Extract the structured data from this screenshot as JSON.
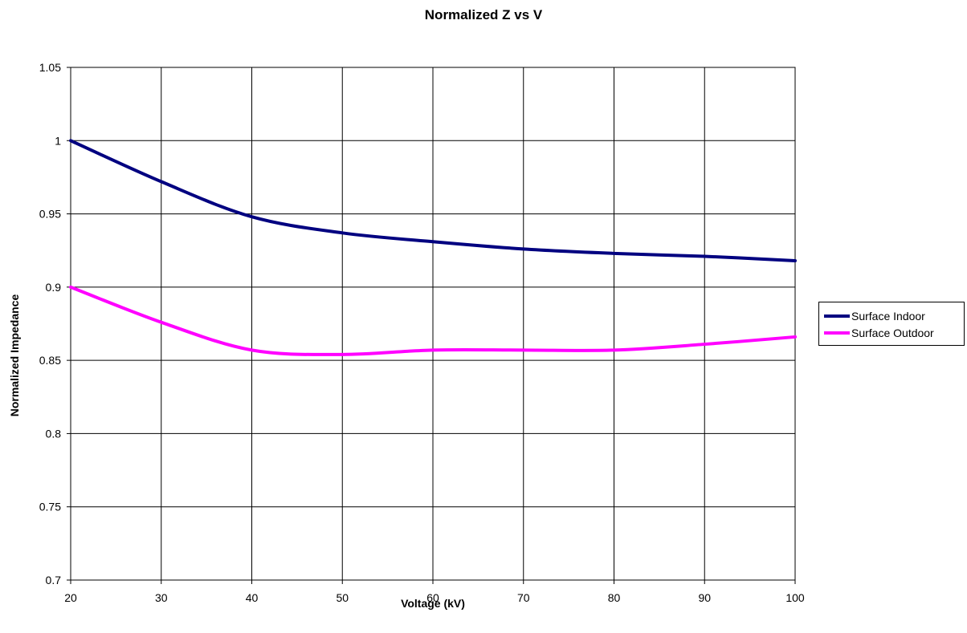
{
  "chart_data": {
    "type": "line",
    "title": "Normalized Z vs V",
    "xlabel": "Voltage (kV)",
    "ylabel": "Normalized Impedance",
    "xlim": [
      20,
      100
    ],
    "ylim": [
      0.7,
      1.05
    ],
    "x_ticks": [
      "20",
      "30",
      "40",
      "50",
      "60",
      "70",
      "80",
      "90",
      "100"
    ],
    "y_ticks": [
      "0.7",
      "0.75",
      "0.8",
      "0.85",
      "0.9",
      "0.95",
      "1",
      "1.05"
    ],
    "grid": true,
    "legend_position": "right",
    "series": [
      {
        "name": "Surface Indoor",
        "color": "#000080",
        "x": [
          20,
          30,
          40,
          50,
          60,
          70,
          80,
          90,
          100
        ],
        "y": [
          1.0,
          0.972,
          0.948,
          0.937,
          0.931,
          0.926,
          0.923,
          0.921,
          0.918
        ]
      },
      {
        "name": "Surface Outdoor",
        "color": "#ff00ff",
        "x": [
          20,
          30,
          40,
          50,
          60,
          70,
          80,
          90,
          100
        ],
        "y": [
          0.9,
          0.876,
          0.857,
          0.854,
          0.857,
          0.857,
          0.857,
          0.861,
          0.866
        ]
      }
    ]
  }
}
